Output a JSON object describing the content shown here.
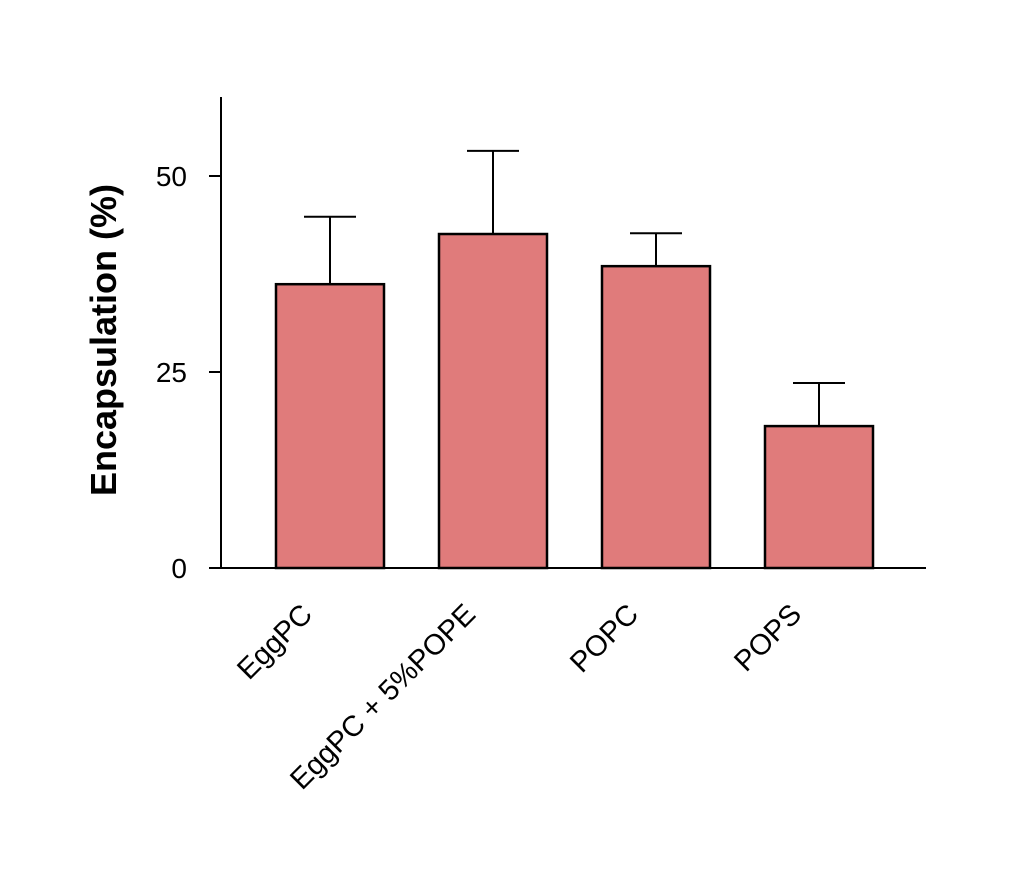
{
  "chart_data": {
    "type": "bar",
    "categories": [
      "EggPC",
      "EggPC + 5%POPE",
      "POPC",
      "POPS"
    ],
    "values": [
      36.2,
      42.6,
      38.5,
      18.1
    ],
    "error_upper": [
      44.8,
      53.2,
      42.7,
      23.6
    ],
    "title": "",
    "xlabel": "",
    "ylabel": "Encapsulation (%)",
    "ylim": [
      0,
      60
    ],
    "yticks": [
      0,
      25,
      50
    ],
    "ytick_labels": [
      "0",
      "25",
      "50"
    ],
    "grid": false,
    "legend": "none",
    "bar_color": "#e07b7b",
    "edge_color": "#000000"
  }
}
